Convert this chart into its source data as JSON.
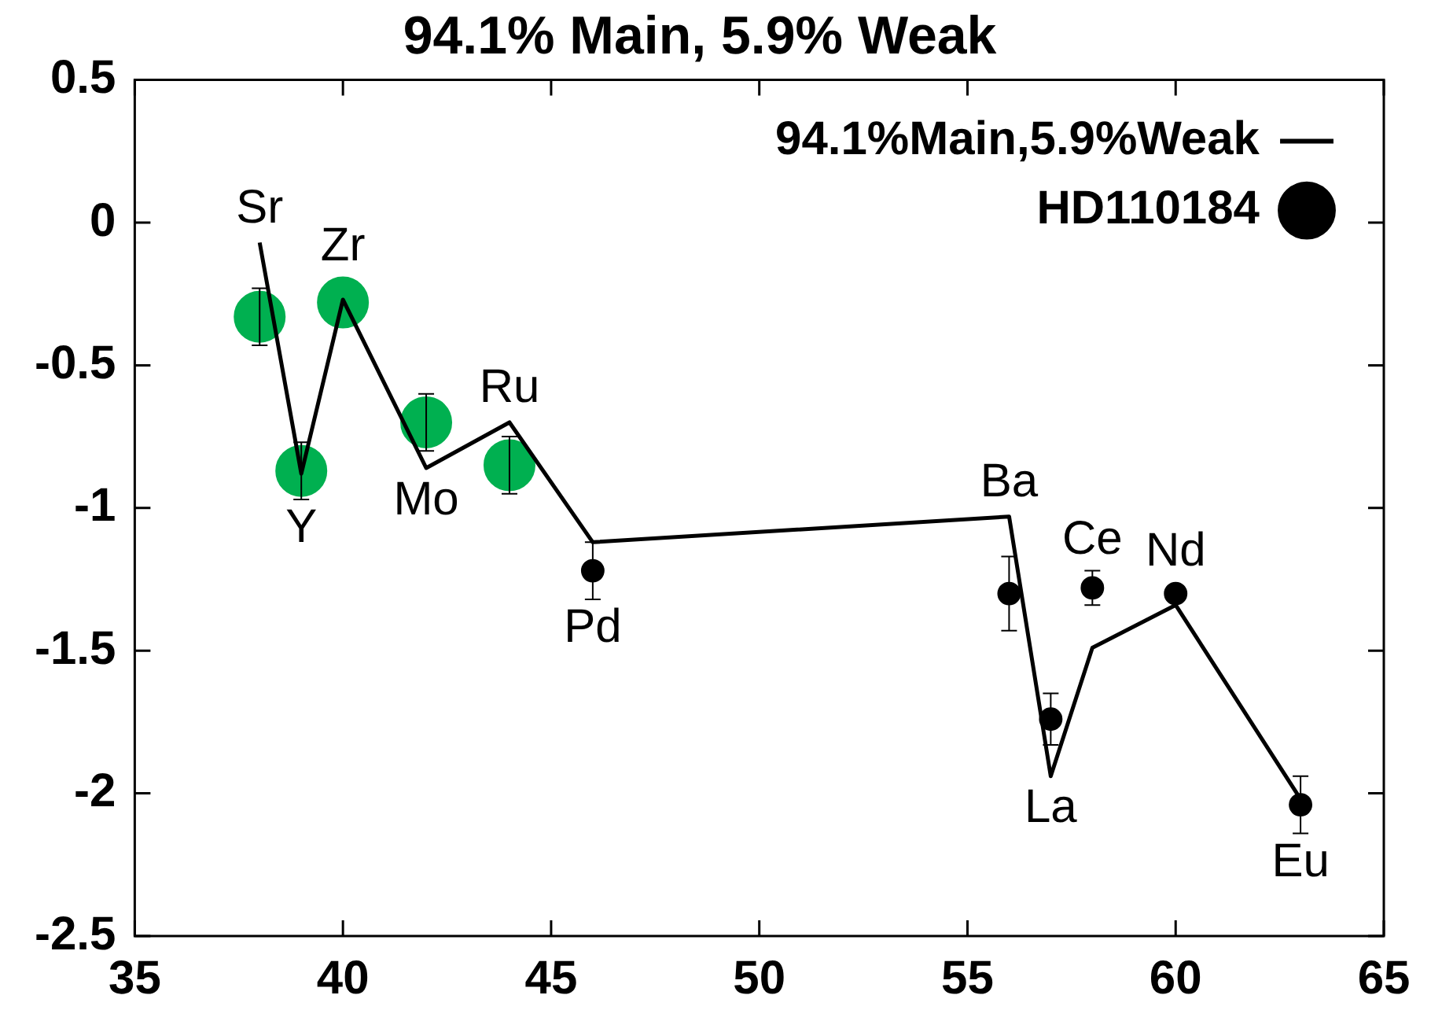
{
  "chart_data": {
    "type": "line",
    "title": "94.1% Main, 5.9% Weak",
    "xlim": [
      35,
      65
    ],
    "xticks": [
      35,
      40,
      45,
      50,
      55,
      60,
      65
    ],
    "ylim": [
      -2.5,
      0.5
    ],
    "yticks": [
      -2.5,
      -2,
      -1.5,
      -1,
      -0.5,
      0,
      0.5
    ],
    "grid": false,
    "legend": "top right",
    "series": [
      {
        "name": "94.1%Main,5.9%Weak",
        "color": "#000000",
        "marker": "none",
        "line_style": "solid",
        "x": [
          38,
          39,
          40,
          42,
          44,
          46,
          56,
          57,
          58,
          60,
          63
        ],
        "values": [
          -0.07,
          -0.88,
          -0.27,
          -0.86,
          -0.7,
          -1.12,
          -1.03,
          -1.94,
          -1.49,
          -1.34,
          -2.02
        ]
      },
      {
        "name": "HD110184",
        "type": "scatter",
        "color": "#000000",
        "marker": "circle",
        "colors": [
          "#00b050",
          "#00b050",
          "#00b050",
          "#00b050",
          "#00b050",
          "#000000",
          "#000000",
          "#000000",
          "#000000",
          "#000000",
          "#000000"
        ],
        "x": [
          38,
          39,
          40,
          42,
          44,
          46,
          56,
          57,
          58,
          60,
          63
        ],
        "values": [
          -0.33,
          -0.87,
          -0.28,
          -0.7,
          -0.85,
          -1.22,
          -1.3,
          -1.74,
          -1.28,
          -1.3,
          -2.04
        ],
        "sizes": [
          1,
          1,
          1,
          1,
          1,
          0.19,
          0.19,
          0.19,
          0.19,
          0.19,
          0.19
        ],
        "errors": [
          0.1,
          0.1,
          null,
          0.1,
          0.1,
          0.1,
          0.13,
          0.09,
          0.06,
          null,
          0.1
        ]
      }
    ],
    "annotations": [
      {
        "text": "Sr",
        "x": 38,
        "y": -0.07
      },
      {
        "text": "Y",
        "x": 39,
        "y": -0.88
      },
      {
        "text": "Zr",
        "x": 40,
        "y": -0.27
      },
      {
        "text": "Mo",
        "x": 42,
        "y": -0.86
      },
      {
        "text": "Ru",
        "x": 44,
        "y": -0.7
      },
      {
        "text": "Pd",
        "x": 46,
        "y": -1.12
      },
      {
        "text": "Ba",
        "x": 56,
        "y": -1.03
      },
      {
        "text": "La",
        "x": 57,
        "y": -1.94
      },
      {
        "text": "Ce",
        "x": 58,
        "y": -1.49
      },
      {
        "text": "Nd",
        "x": 60,
        "y": -1.34
      },
      {
        "text": "Eu",
        "x": 63,
        "y": -2.02
      }
    ]
  }
}
